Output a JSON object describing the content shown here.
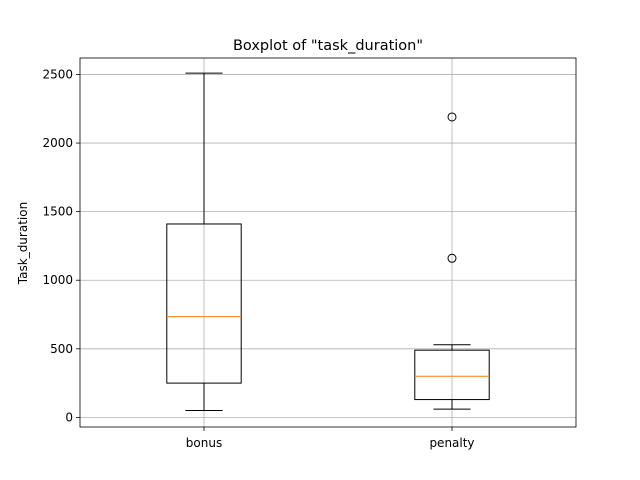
{
  "chart_data": {
    "type": "box",
    "title": "Boxplot of \"task_duration\"",
    "xlabel": "",
    "ylabel": "Task_duration",
    "ylim": [
      -70,
      2620
    ],
    "yticks": [
      0,
      500,
      1000,
      1500,
      2000,
      2500
    ],
    "grid": true,
    "categories": [
      "bonus",
      "penalty"
    ],
    "boxes": [
      {
        "category": "bonus",
        "whisker_low": 50,
        "q1": 250,
        "median": 735,
        "q3": 1410,
        "whisker_high": 2510,
        "outliers": []
      },
      {
        "category": "penalty",
        "whisker_low": 60,
        "q1": 130,
        "median": 300,
        "q3": 490,
        "whisker_high": 530,
        "outliers": [
          1160,
          2190
        ]
      }
    ],
    "colors": {
      "median": "#ff7f0e",
      "box": "#000000",
      "grid": "#b0b0b0"
    }
  }
}
